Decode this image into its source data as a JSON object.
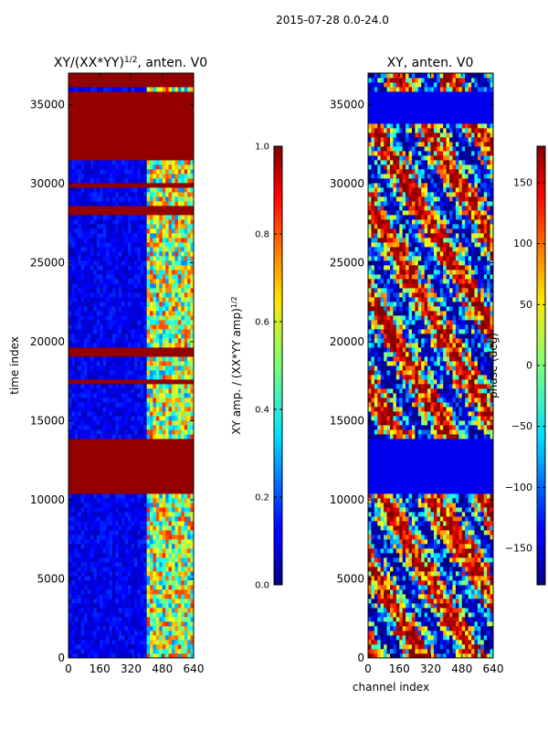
{
  "figure_title": "2015-07-28 0.0-24.0",
  "chart_data": [
    {
      "type": "heatmap",
      "title": "XY/(XX*YY)",
      "title_exponent": "1/2",
      "title_suffix": ", anten. V0",
      "xlabel": "",
      "ylabel": "time index",
      "xlim": [
        0,
        640
      ],
      "ylim": [
        0,
        37000
      ],
      "xticks": [
        0,
        160,
        320,
        480,
        640
      ],
      "yticks": [
        0,
        5000,
        10000,
        15000,
        20000,
        25000,
        30000,
        35000
      ],
      "colorbar": {
        "label": "XY amp. / (XX*YY amp)",
        "label_exponent": "1/2",
        "range": [
          0.0,
          1.0
        ],
        "ticks": [
          "0.0",
          "0.2",
          "0.4",
          "0.6",
          "0.8",
          "1.0"
        ],
        "tick_values": [
          0.0,
          0.2,
          0.4,
          0.6,
          0.8,
          1.0
        ]
      },
      "flagged_time_ranges": [
        [
          10300,
          14000
        ],
        [
          19000,
          19600
        ],
        [
          17200,
          17600
        ],
        [
          28100,
          28500
        ],
        [
          29900,
          30100
        ],
        [
          31500,
          33700
        ],
        [
          33800,
          35700
        ],
        [
          36200,
          36900
        ]
      ],
      "bright_channel_range": [
        400,
        640
      ]
    },
    {
      "type": "heatmap",
      "title": "XY, anten. V0",
      "xlabel": "channel index",
      "ylabel": "",
      "xlim": [
        0,
        640
      ],
      "ylim": [
        0,
        37000
      ],
      "xticks": [
        0,
        160,
        320,
        480,
        640
      ],
      "yticks": [
        0,
        5000,
        10000,
        15000,
        20000,
        25000,
        30000,
        35000
      ],
      "colorbar": {
        "label": "phase (deg)",
        "range": [
          -180,
          180
        ],
        "ticks": [
          "150",
          "100",
          "50",
          "0",
          "−50",
          "−100",
          "−150"
        ],
        "tick_values": [
          150,
          100,
          50,
          0,
          -50,
          -100,
          -150
        ]
      },
      "flagged_time_ranges": [
        [
          10300,
          14000
        ],
        [
          33800,
          35700
        ]
      ]
    }
  ]
}
